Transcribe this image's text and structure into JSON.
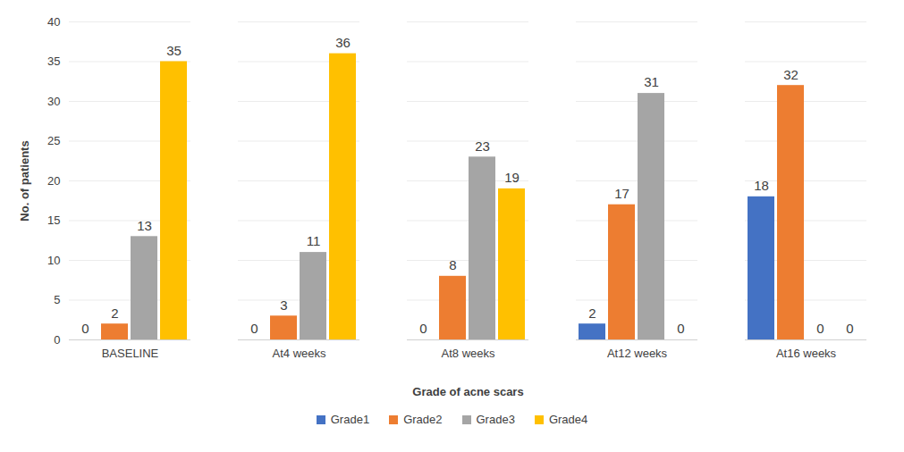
{
  "chart_data": {
    "type": "bar",
    "x_label": "Grade of acne scars",
    "y_label": "No. of patients",
    "categories": [
      "BASELINE",
      "At4 weeks",
      "At8 weeks",
      "At12 weeks",
      "At16 weeks"
    ],
    "series": [
      {
        "name": "Grade1",
        "color": "#4472c4",
        "values": [
          0,
          0,
          0,
          2,
          18
        ]
      },
      {
        "name": "Grade2",
        "color": "#ed7d31",
        "values": [
          2,
          3,
          8,
          17,
          32
        ]
      },
      {
        "name": "Grade3",
        "color": "#a5a5a5",
        "values": [
          13,
          11,
          23,
          31,
          0
        ]
      },
      {
        "name": "Grade4",
        "color": "#ffc000",
        "values": [
          35,
          36,
          19,
          0,
          0
        ]
      }
    ],
    "ylim": [
      0,
      40
    ],
    "yticks": [
      0,
      5,
      10,
      15,
      20,
      25,
      30,
      35,
      40
    ],
    "grid": true,
    "data_labels": true,
    "legend": "bottom"
  }
}
